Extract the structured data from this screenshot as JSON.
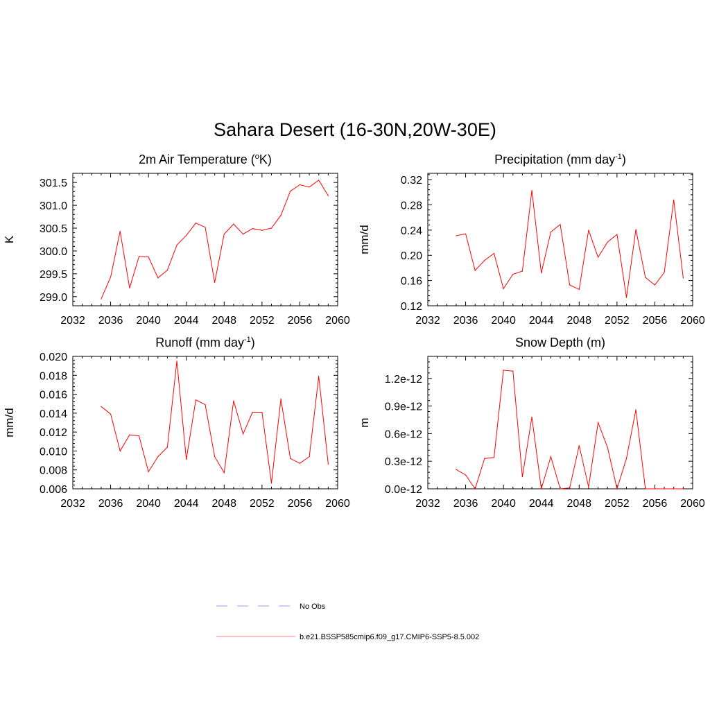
{
  "figure": {
    "title": "Sahara Desert (16-30N,20W-30E)"
  },
  "legend": {
    "entries": [
      {
        "label": "No Obs",
        "color": "#9a9aff",
        "style": "dashed"
      },
      {
        "label": "b.e21.BSSP585cmip6.f09_g17.CMIP6-SSP5-8.5.002",
        "color": "#ff8080",
        "style": "solid"
      }
    ]
  },
  "chart_data": [
    {
      "type": "line",
      "title": "2m Air Temperature (",
      "title_sup": "o",
      "title_after": "K)",
      "ylabel": "K",
      "xlim": [
        2032,
        2060
      ],
      "ylim": [
        298.8,
        301.7
      ],
      "xticks": [
        2032,
        2036,
        2040,
        2044,
        2048,
        2052,
        2056,
        2060
      ],
      "yticks": [
        299.0,
        299.5,
        300.0,
        300.5,
        301.0,
        301.5
      ],
      "ytick_labels": [
        "299.0",
        "299.5",
        "300.0",
        "300.5",
        "301.0",
        "301.5"
      ],
      "series": [
        {
          "color": "#ff0000",
          "x": [
            2035,
            2036,
            2037,
            2038,
            2039,
            2040,
            2041,
            2042,
            2043,
            2044,
            2045,
            2046,
            2047,
            2048,
            2049,
            2050,
            2051,
            2052,
            2053,
            2054,
            2055,
            2056,
            2057,
            2058,
            2059
          ],
          "y": [
            298.95,
            299.43,
            300.43,
            299.19,
            299.88,
            299.87,
            299.41,
            299.58,
            300.13,
            300.34,
            300.61,
            300.52,
            299.31,
            300.37,
            300.59,
            300.37,
            300.49,
            300.45,
            300.5,
            300.78,
            301.31,
            301.45,
            301.4,
            301.55,
            301.21
          ]
        }
      ]
    },
    {
      "type": "line",
      "title": "Precipitation (mm day",
      "title_sup": "-1",
      "title_after": ")",
      "ylabel": "mm/d",
      "xlim": [
        2032,
        2060
      ],
      "ylim": [
        0.12,
        0.33
      ],
      "xticks": [
        2032,
        2036,
        2040,
        2044,
        2048,
        2052,
        2056,
        2060
      ],
      "yticks": [
        0.12,
        0.16,
        0.2,
        0.24,
        0.28,
        0.32
      ],
      "ytick_labels": [
        "0.12",
        "0.16",
        "0.20",
        "0.24",
        "0.28",
        "0.32"
      ],
      "series": [
        {
          "color": "#ff0000",
          "x": [
            2035,
            2036,
            2037,
            2038,
            2039,
            2040,
            2041,
            2042,
            2043,
            2044,
            2045,
            2046,
            2047,
            2048,
            2049,
            2050,
            2051,
            2052,
            2053,
            2054,
            2055,
            2056,
            2057,
            2058,
            2059
          ],
          "y": [
            0.231,
            0.234,
            0.176,
            0.192,
            0.203,
            0.147,
            0.17,
            0.175,
            0.303,
            0.172,
            0.237,
            0.249,
            0.153,
            0.146,
            0.24,
            0.197,
            0.221,
            0.233,
            0.133,
            0.241,
            0.165,
            0.153,
            0.173,
            0.288,
            0.164
          ]
        }
      ]
    },
    {
      "type": "line",
      "title": "Runoff (mm day",
      "title_sup": "-1",
      "title_after": ")",
      "ylabel": "mm/d",
      "xlim": [
        2032,
        2060
      ],
      "ylim": [
        0.006,
        0.02
      ],
      "xticks": [
        2032,
        2036,
        2040,
        2044,
        2048,
        2052,
        2056,
        2060
      ],
      "yticks": [
        0.006,
        0.008,
        0.01,
        0.012,
        0.014,
        0.016,
        0.018,
        0.02
      ],
      "ytick_labels": [
        "0.006",
        "0.008",
        "0.010",
        "0.012",
        "0.014",
        "0.016",
        "0.018",
        "0.020"
      ],
      "series": [
        {
          "color": "#ff0000",
          "x": [
            2035,
            2036,
            2037,
            2038,
            2039,
            2040,
            2041,
            2042,
            2043,
            2044,
            2045,
            2046,
            2047,
            2048,
            2049,
            2050,
            2051,
            2052,
            2053,
            2054,
            2055,
            2056,
            2057,
            2058,
            2059
          ],
          "y": [
            0.0147,
            0.0139,
            0.01,
            0.0117,
            0.0116,
            0.0078,
            0.0094,
            0.0104,
            0.0195,
            0.0091,
            0.0154,
            0.0149,
            0.0094,
            0.0077,
            0.0153,
            0.0118,
            0.0141,
            0.0141,
            0.0066,
            0.0155,
            0.0092,
            0.0087,
            0.0094,
            0.0179,
            0.0086
          ]
        }
      ]
    },
    {
      "type": "line",
      "title": "Snow Depth (m)",
      "title_sup": "",
      "title_after": "",
      "ylabel": "m",
      "xlim": [
        2032,
        2060
      ],
      "ylim": [
        0.0,
        1.44e-12
      ],
      "xticks": [
        2032,
        2036,
        2040,
        2044,
        2048,
        2052,
        2056,
        2060
      ],
      "yticks": [
        0.0,
        3e-13,
        6e-13,
        9e-13,
        1.2e-12
      ],
      "ytick_labels": [
        "0.0e-12",
        "0.3e-12",
        "0.6e-12",
        "0.9e-12",
        "1.2e-12"
      ],
      "series": [
        {
          "color": "#ff0000",
          "x": [
            2035,
            2036,
            2037,
            2038,
            2039,
            2040,
            2041,
            2042,
            2043,
            2044,
            2045,
            2046,
            2047,
            2048,
            2049,
            2050,
            2051,
            2052,
            2053,
            2054,
            2055,
            2056,
            2057,
            2058,
            2059
          ],
          "y": [
            2.1e-13,
            1.5e-13,
            0.0,
            3.3e-13,
            3.4e-13,
            1.29e-12,
            1.28e-12,
            1.3e-13,
            7.8e-13,
            0.0,
            3.5e-13,
            0.0,
            1e-14,
            4.7e-13,
            2e-14,
            7.2e-13,
            4.5e-13,
            0.0,
            3.3e-13,
            8.6e-13,
            0.0,
            0.0,
            0.0,
            0.0,
            0.0
          ]
        }
      ]
    }
  ]
}
